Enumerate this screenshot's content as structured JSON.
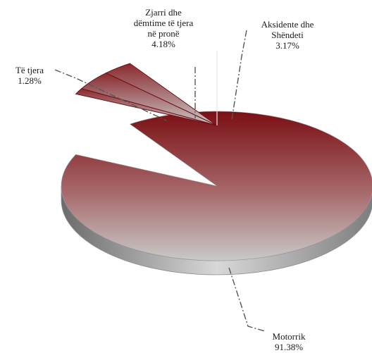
{
  "chart_data": {
    "type": "pie",
    "style": "3d-exploded",
    "legend": "none",
    "slices": [
      {
        "label_lines": [
          "Motorrik"
        ],
        "value": 91.38,
        "value_label": "91.38%"
      },
      {
        "label_lines": [
          "Të tjera"
        ],
        "value": 1.28,
        "value_label": "1.28%"
      },
      {
        "label_lines": [
          "Zjarri dhe",
          "dëmtime të tjera",
          "në pronë"
        ],
        "value": 4.18,
        "value_label": "4.18%"
      },
      {
        "label_lines": [
          "Aksidente dhe",
          "Shëndeti"
        ],
        "value": 3.17,
        "value_label": "3.17%"
      }
    ]
  },
  "colors": {
    "slice_dark": "#7a0f14",
    "slice_light": "#c9c9c9",
    "side_dark": "#6b6b6b",
    "side_light": "#d8d8d8",
    "leader": "#555555"
  }
}
